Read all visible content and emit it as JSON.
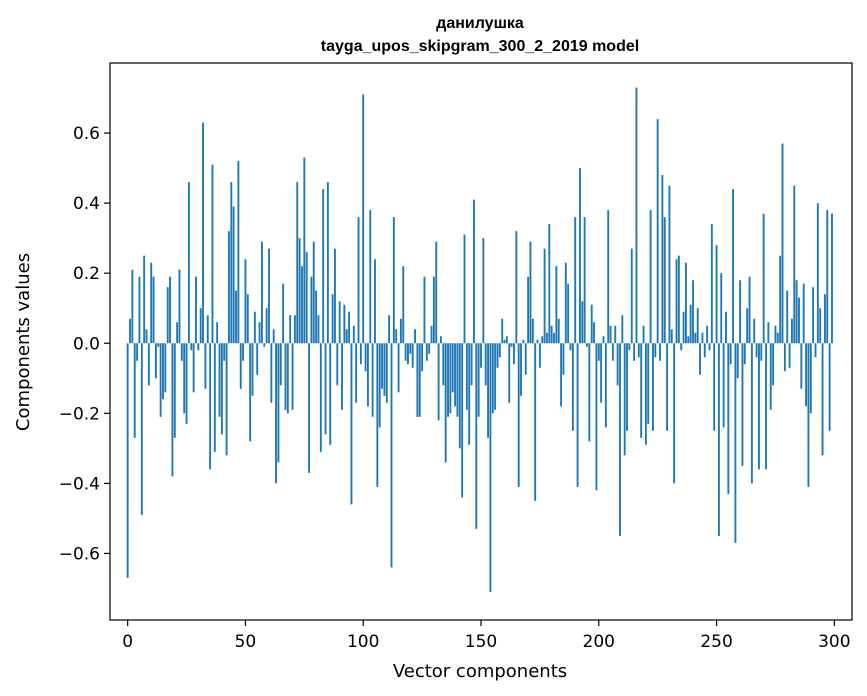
{
  "chart_data": {
    "type": "bar",
    "title": "данилушка",
    "subtitle": "tayga_upos_skipgram_300_2_2019 model",
    "xlabel": "Vector components",
    "ylabel": "Components values",
    "xlim": [
      -7.5,
      307.5
    ],
    "ylim": [
      -0.79,
      0.8
    ],
    "x_ticks": [
      0,
      50,
      100,
      150,
      200,
      250,
      300
    ],
    "x_tick_labels": [
      "0",
      "50",
      "100",
      "150",
      "200",
      "250",
      "300"
    ],
    "y_ticks": [
      -0.6,
      -0.4,
      -0.2,
      0.0,
      0.2,
      0.4,
      0.6
    ],
    "y_tick_labels": [
      "−0.6",
      "−0.4",
      "−0.2",
      "0.0",
      "0.2",
      "0.4",
      "0.6"
    ],
    "grid": false,
    "bar_color": "#1f77b4",
    "categories_range": [
      0,
      299
    ],
    "values": [
      -0.67,
      0.07,
      0.21,
      -0.27,
      -0.05,
      0.19,
      -0.49,
      0.25,
      0.04,
      -0.12,
      0.23,
      0.19,
      -0.1,
      -0.01,
      -0.21,
      -0.16,
      -0.14,
      0.16,
      0.19,
      -0.38,
      -0.27,
      0.06,
      0.21,
      -0.05,
      -0.2,
      -0.23,
      0.46,
      -0.02,
      -0.14,
      0.19,
      -0.02,
      0.1,
      0.63,
      -0.13,
      0.08,
      -0.36,
      0.51,
      -0.31,
      0.06,
      -0.21,
      -0.26,
      -0.05,
      -0.32,
      0.32,
      0.46,
      0.39,
      0.15,
      0.52,
      -0.13,
      -0.05,
      0.24,
      0.14,
      -0.28,
      -0.15,
      0.09,
      -0.09,
      0.06,
      0.29,
      -0.01,
      0.1,
      0.27,
      -0.17,
      0.04,
      -0.4,
      -0.34,
      -0.12,
      0.17,
      -0.19,
      -0.2,
      0.08,
      -0.19,
      0.08,
      0.46,
      0.3,
      0.22,
      0.53,
      0.26,
      -0.37,
      0.19,
      0.29,
      0.15,
      0.08,
      -0.31,
      0.44,
      -0.26,
      0.46,
      -0.29,
      0.14,
      0.27,
      -0.12,
      0.12,
      -0.19,
      0.11,
      0.04,
      0.09,
      -0.46,
      0.05,
      -0.17,
      0.36,
      -0.06,
      0.71,
      -0.08,
      -0.18,
      0.38,
      -0.21,
      0.24,
      -0.41,
      -0.24,
      -0.13,
      -0.15,
      -0.17,
      0.08,
      -0.64,
      0.36,
      0.04,
      -0.14,
      0.07,
      0.22,
      -0.05,
      -0.06,
      -0.03,
      -0.07,
      0.04,
      -0.21,
      -0.21,
      -0.08,
      0.19,
      -0.05,
      -0.03,
      0.05,
      0.19,
      0.29,
      -0.22,
      0.02,
      -0.12,
      -0.34,
      -0.21,
      -0.2,
      -0.14,
      -0.18,
      -0.21,
      -0.3,
      -0.44,
      0.31,
      -0.19,
      -0.29,
      -0.12,
      0.41,
      -0.53,
      -0.21,
      -0.07,
      0.3,
      -0.12,
      -0.27,
      -0.71,
      -0.2,
      -0.19,
      -0.07,
      -0.04,
      0.07,
      0.01,
      0.02,
      -0.17,
      -0.01,
      -0.06,
      0.32,
      -0.41,
      -0.15,
      0.01,
      -0.09,
      0.19,
      0.29,
      0.07,
      -0.45,
      0.01,
      -0.07,
      0.02,
      0.27,
      0.03,
      0.34,
      0.05,
      0.03,
      0.22,
      0.07,
      -0.18,
      -0.09,
      0.23,
      0.17,
      -0.02,
      -0.25,
      0.36,
      -0.41,
      0.5,
      0.12,
      0.36,
      -0.01,
      -0.28,
      0.11,
      0.06,
      -0.42,
      -0.05,
      -0.17,
      0.02,
      -0.24,
      0.38,
      0.05,
      -0.05,
      0.05,
      -0.12,
      -0.55,
      0.08,
      -0.32,
      -0.25,
      -0.02,
      0.27,
      -0.05,
      0.73,
      -0.04,
      -0.27,
      0.05,
      -0.29,
      -0.23,
      0.38,
      -0.25,
      -0.04,
      0.64,
      -0.05,
      0.48,
      0.36,
      -0.25,
      0.45,
      0.04,
      -0.4,
      0.24,
      0.25,
      -0.02,
      0.09,
      0.23,
      0.02,
      0.11,
      0.18,
      0.03,
      0.1,
      -0.09,
      0.03,
      -0.04,
      0.05,
      -0.02,
      0.34,
      -0.25,
      0.28,
      -0.55,
      0.2,
      -0.24,
      0.09,
      -0.43,
      -0.06,
      0.44,
      -0.57,
      -0.1,
      0.18,
      -0.35,
      -0.06,
      0.1,
      0.19,
      -0.4,
      0.07,
      -0.04,
      -0.36,
      -0.05,
      0.37,
      -0.36,
      0.06,
      -0.19,
      -0.12,
      0.05,
      0.03,
      0.25,
      0.57,
      -0.08,
      0.15,
      -0.07,
      0.07,
      0.45,
      0.18,
      0.13,
      -0.13,
      0.17,
      -0.18,
      -0.41,
      -0.2,
      0.16,
      -0.04,
      0.4,
      0.1,
      -0.32,
      0.14,
      0.38,
      -0.25,
      0.37
    ]
  }
}
